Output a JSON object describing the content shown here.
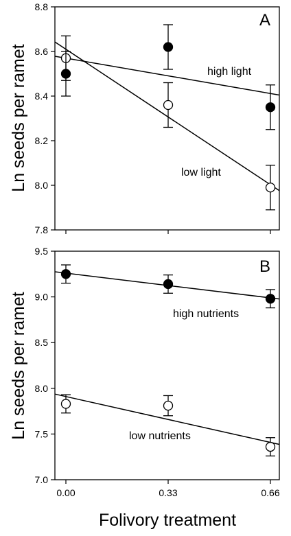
{
  "chart_data": [
    {
      "type": "scatter",
      "panel_label": "A",
      "ylabel": "Ln seeds per ramet",
      "xlabel": "",
      "ylim": [
        7.8,
        8.8
      ],
      "yticks": [
        "7.8",
        "8.0",
        "8.2",
        "8.4",
        "8.6",
        "8.8"
      ],
      "xlim": [
        -0.05,
        0.7
      ],
      "x": [
        0.0,
        0.33,
        0.66
      ],
      "series": [
        {
          "name": "high light",
          "marker": "filled",
          "values": [
            8.5,
            8.62,
            8.35
          ],
          "errors": [
            0.1,
            0.1,
            0.1
          ],
          "fit": {
            "intercept": 8.57,
            "slope": -0.24
          }
        },
        {
          "name": "low light",
          "marker": "open",
          "values": [
            8.57,
            8.36,
            7.99
          ],
          "errors": [
            0.1,
            0.1,
            0.1
          ],
          "fit": {
            "intercept": 8.61,
            "slope": -0.92
          }
        }
      ],
      "annotations": [
        {
          "text": "high light",
          "series": 0
        },
        {
          "text": "low light",
          "series": 1
        }
      ],
      "grid": false,
      "legend": "none"
    },
    {
      "type": "scatter",
      "panel_label": "B",
      "ylabel": "Ln seeds per ramet",
      "xlabel": "Folivory treatment",
      "ylim": [
        7.0,
        9.5
      ],
      "yticks": [
        "7.0",
        "7.5",
        "8.0",
        "8.5",
        "9.0",
        "9.5"
      ],
      "xlim": [
        -0.05,
        0.7
      ],
      "x": [
        0.0,
        0.33,
        0.66
      ],
      "xticks": [
        "0.00",
        "0.33",
        "0.66"
      ],
      "series": [
        {
          "name": "high nutrients",
          "marker": "filled",
          "values": [
            9.25,
            9.14,
            8.98
          ],
          "errors": [
            0.1,
            0.1,
            0.1
          ],
          "fit": {
            "intercept": 9.26,
            "slope": -0.41
          }
        },
        {
          "name": "low nutrients",
          "marker": "open",
          "values": [
            7.83,
            7.81,
            7.36
          ],
          "errors": [
            0.1,
            0.11,
            0.1
          ],
          "fit": {
            "intercept": 7.91,
            "slope": -0.76
          }
        }
      ],
      "annotations": [
        {
          "text": "high nutrients",
          "series": 0
        },
        {
          "text": "low nutrients",
          "series": 1
        }
      ],
      "grid": false,
      "legend": "none"
    }
  ]
}
